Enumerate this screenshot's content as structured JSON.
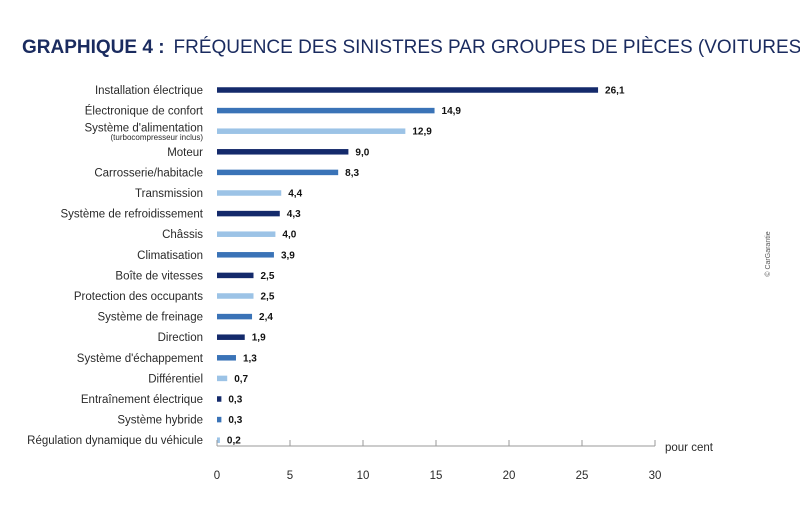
{
  "chart_data": {
    "type": "bar",
    "orientation": "horizontal",
    "title_bold": "GRAPHIQUE 4 :",
    "title_rest": "FRÉQUENCE DES SINISTRES PAR GROUPES DE PIÈCES (VOITURES NEUVES)",
    "categories": [
      "Installation électrique",
      "Électronique de confort",
      "Système d'alimentation",
      "Moteur",
      "Carrosserie/habitacle",
      "Transmission",
      "Système de refroidissement",
      "Châssis",
      "Climatisation",
      "Boîte de vitesses",
      "Protection des occupants",
      "Système de freinage",
      "Direction",
      "Système d'échappement",
      "Différentiel",
      "Entraînement électrique",
      "Système hybride",
      "Régulation dynamique du véhicule"
    ],
    "category_sublabels": [
      "",
      "",
      "(turbocompresseur inclus)",
      "",
      "",
      "",
      "",
      "",
      "",
      "",
      "",
      "",
      "",
      "",
      "",
      "",
      "",
      ""
    ],
    "values": [
      26.1,
      14.9,
      12.9,
      9.0,
      8.3,
      4.4,
      4.3,
      4.0,
      3.9,
      2.5,
      2.5,
      2.4,
      1.9,
      1.3,
      0.7,
      0.3,
      0.3,
      0.2
    ],
    "value_labels": [
      "26,1",
      "14,9",
      "12,9",
      "9,0",
      "8,3",
      "4,4",
      "4,3",
      "4,0",
      "3,9",
      "2,5",
      "2,5",
      "2,4",
      "1,9",
      "1,3",
      "0,7",
      "0,3",
      "0,3",
      "0,2"
    ],
    "bar_colors": [
      "#142a6b",
      "#3a73b7",
      "#9cc3e6",
      "#142a6b",
      "#3a73b7",
      "#9cc3e6",
      "#142a6b",
      "#9cc3e6",
      "#3a73b7",
      "#142a6b",
      "#9cc3e6",
      "#3a73b7",
      "#142a6b",
      "#3a73b7",
      "#9cc3e6",
      "#142a6b",
      "#3a73b7",
      "#9cc3e6"
    ],
    "xlim": [
      0,
      30
    ],
    "xticks": [
      0,
      5,
      10,
      15,
      20,
      25,
      30
    ],
    "xlabel": "pour cent",
    "grid": false,
    "credit": "© CarGarantie"
  }
}
